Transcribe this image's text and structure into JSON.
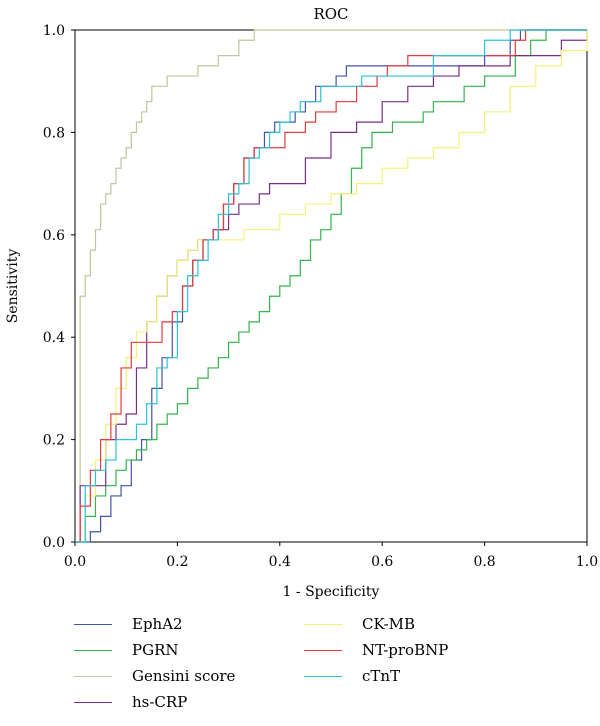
{
  "chart_data": {
    "type": "line",
    "title": "ROC",
    "xlabel": "1 - Specificity",
    "ylabel": "Sensitivity",
    "xlim": [
      0,
      1
    ],
    "ylim": [
      0,
      1
    ],
    "xticks": [
      "0.0",
      "0.2",
      "0.4",
      "0.6",
      "0.8",
      "1.0"
    ],
    "yticks": [
      "0.0",
      "0.2",
      "0.4",
      "0.6",
      "0.8",
      "1.0"
    ],
    "grid": false,
    "legend_position": "bottom",
    "series": [
      {
        "name": "EphA2",
        "color": "#3f55a6",
        "x": [
          0.0,
          0.03,
          0.03,
          0.05,
          0.07,
          0.09,
          0.11,
          0.13,
          0.15,
          0.17,
          0.19,
          0.21,
          0.23,
          0.25,
          0.27,
          0.29,
          0.31,
          0.33,
          0.35,
          0.37,
          0.39,
          0.41,
          0.43,
          0.45,
          0.47,
          0.49,
          0.51,
          0.53,
          0.55,
          0.57,
          0.59,
          0.61,
          0.63,
          0.65,
          0.7,
          0.75,
          0.8,
          0.85,
          0.87,
          1.0
        ],
        "y": [
          0.0,
          0.0,
          0.02,
          0.05,
          0.09,
          0.11,
          0.16,
          0.2,
          0.3,
          0.36,
          0.43,
          0.5,
          0.55,
          0.59,
          0.61,
          0.66,
          0.7,
          0.75,
          0.77,
          0.8,
          0.82,
          0.82,
          0.84,
          0.86,
          0.89,
          0.89,
          0.91,
          0.93,
          0.93,
          0.93,
          0.93,
          0.93,
          0.93,
          0.93,
          0.93,
          0.93,
          0.95,
          0.98,
          1.0,
          1.0
        ]
      },
      {
        "name": "PGRN",
        "color": "#33b34a",
        "x": [
          0.0,
          0.02,
          0.04,
          0.06,
          0.08,
          0.1,
          0.12,
          0.14,
          0.16,
          0.18,
          0.2,
          0.22,
          0.24,
          0.26,
          0.28,
          0.3,
          0.32,
          0.34,
          0.36,
          0.38,
          0.4,
          0.42,
          0.44,
          0.46,
          0.48,
          0.5,
          0.52,
          0.54,
          0.56,
          0.58,
          0.6,
          0.62,
          0.64,
          0.66,
          0.68,
          0.7,
          0.72,
          0.76,
          0.8,
          0.83,
          0.86,
          0.89,
          0.92,
          0.96,
          1.0
        ],
        "y": [
          0.0,
          0.05,
          0.09,
          0.11,
          0.14,
          0.16,
          0.18,
          0.2,
          0.23,
          0.25,
          0.27,
          0.3,
          0.32,
          0.34,
          0.36,
          0.39,
          0.41,
          0.43,
          0.45,
          0.48,
          0.5,
          0.52,
          0.55,
          0.59,
          0.61,
          0.64,
          0.68,
          0.73,
          0.77,
          0.8,
          0.8,
          0.82,
          0.82,
          0.82,
          0.84,
          0.86,
          0.86,
          0.89,
          0.91,
          0.91,
          0.95,
          0.98,
          1.0,
          1.0,
          1.0
        ]
      },
      {
        "name": "Gensini score",
        "color": "#c4c49a",
        "x": [
          0.0,
          0.01,
          0.01,
          0.02,
          0.03,
          0.04,
          0.05,
          0.06,
          0.07,
          0.08,
          0.09,
          0.1,
          0.11,
          0.12,
          0.13,
          0.14,
          0.15,
          0.16,
          0.18,
          0.2,
          0.22,
          0.24,
          0.26,
          0.28,
          0.3,
          0.32,
          0.34,
          0.35,
          0.36,
          1.0
        ],
        "y": [
          0.0,
          0.2,
          0.48,
          0.52,
          0.57,
          0.61,
          0.66,
          0.68,
          0.7,
          0.73,
          0.75,
          0.77,
          0.8,
          0.82,
          0.84,
          0.86,
          0.89,
          0.89,
          0.91,
          0.91,
          0.91,
          0.93,
          0.93,
          0.95,
          0.95,
          0.98,
          0.98,
          1.0,
          1.0,
          1.0
        ]
      },
      {
        "name": "hs-CRP",
        "color": "#7b2f8a",
        "x": [
          0.0,
          0.01,
          0.04,
          0.06,
          0.08,
          0.1,
          0.12,
          0.14,
          0.16,
          0.18,
          0.2,
          0.22,
          0.24,
          0.26,
          0.28,
          0.3,
          0.32,
          0.34,
          0.36,
          0.38,
          0.4,
          0.45,
          0.5,
          0.55,
          0.6,
          0.65,
          0.7,
          0.75,
          0.8,
          0.85,
          0.9,
          0.95,
          1.0
        ],
        "y": [
          0.0,
          0.11,
          0.11,
          0.2,
          0.23,
          0.25,
          0.34,
          0.43,
          0.48,
          0.52,
          0.55,
          0.57,
          0.59,
          0.59,
          0.61,
          0.64,
          0.66,
          0.66,
          0.68,
          0.7,
          0.7,
          0.75,
          0.8,
          0.82,
          0.86,
          0.89,
          0.91,
          0.93,
          0.93,
          0.95,
          0.95,
          0.98,
          1.0
        ]
      },
      {
        "name": "CK-MB",
        "color": "#f4f07a",
        "x": [
          0.0,
          0.02,
          0.04,
          0.06,
          0.08,
          0.1,
          0.12,
          0.14,
          0.16,
          0.18,
          0.2,
          0.22,
          0.24,
          0.26,
          0.28,
          0.3,
          0.33,
          0.36,
          0.4,
          0.45,
          0.5,
          0.55,
          0.6,
          0.65,
          0.7,
          0.75,
          0.8,
          0.85,
          0.9,
          0.95,
          1.0
        ],
        "y": [
          0.0,
          0.09,
          0.16,
          0.23,
          0.3,
          0.36,
          0.41,
          0.43,
          0.48,
          0.52,
          0.55,
          0.57,
          0.59,
          0.59,
          0.59,
          0.59,
          0.61,
          0.61,
          0.64,
          0.66,
          0.68,
          0.7,
          0.73,
          0.75,
          0.77,
          0.8,
          0.84,
          0.89,
          0.93,
          0.96,
          1.0
        ]
      },
      {
        "name": "NT-proBNP",
        "color": "#e23b3b",
        "x": [
          0.0,
          0.01,
          0.03,
          0.05,
          0.07,
          0.09,
          0.11,
          0.13,
          0.15,
          0.17,
          0.19,
          0.21,
          0.23,
          0.25,
          0.27,
          0.29,
          0.31,
          0.33,
          0.35,
          0.37,
          0.39,
          0.41,
          0.43,
          0.45,
          0.47,
          0.49,
          0.51,
          0.53,
          0.55,
          0.57,
          0.59,
          0.61,
          0.63,
          0.65,
          0.7,
          0.75,
          0.8,
          0.86,
          0.88,
          1.0
        ],
        "y": [
          0.0,
          0.07,
          0.14,
          0.2,
          0.25,
          0.34,
          0.39,
          0.39,
          0.39,
          0.43,
          0.45,
          0.5,
          0.55,
          0.59,
          0.61,
          0.66,
          0.7,
          0.75,
          0.77,
          0.77,
          0.77,
          0.8,
          0.8,
          0.82,
          0.84,
          0.84,
          0.86,
          0.86,
          0.89,
          0.89,
          0.91,
          0.93,
          0.93,
          0.95,
          0.95,
          0.95,
          0.95,
          0.98,
          1.0,
          1.0
        ]
      },
      {
        "name": "cTnT",
        "color": "#2bc1d6",
        "x": [
          0.0,
          0.02,
          0.04,
          0.06,
          0.08,
          0.1,
          0.12,
          0.14,
          0.16,
          0.18,
          0.2,
          0.22,
          0.24,
          0.26,
          0.28,
          0.3,
          0.32,
          0.34,
          0.36,
          0.38,
          0.4,
          0.42,
          0.44,
          0.46,
          0.48,
          0.5,
          0.52,
          0.54,
          0.56,
          0.58,
          0.6,
          0.62,
          0.64,
          0.66,
          0.7,
          0.75,
          0.8,
          0.85,
          1.0
        ],
        "y": [
          0.0,
          0.11,
          0.14,
          0.16,
          0.2,
          0.2,
          0.23,
          0.27,
          0.34,
          0.36,
          0.45,
          0.52,
          0.55,
          0.59,
          0.64,
          0.68,
          0.7,
          0.75,
          0.77,
          0.8,
          0.82,
          0.84,
          0.86,
          0.86,
          0.89,
          0.89,
          0.89,
          0.89,
          0.91,
          0.91,
          0.91,
          0.91,
          0.91,
          0.91,
          0.95,
          0.95,
          0.98,
          1.0,
          1.0
        ]
      }
    ]
  }
}
